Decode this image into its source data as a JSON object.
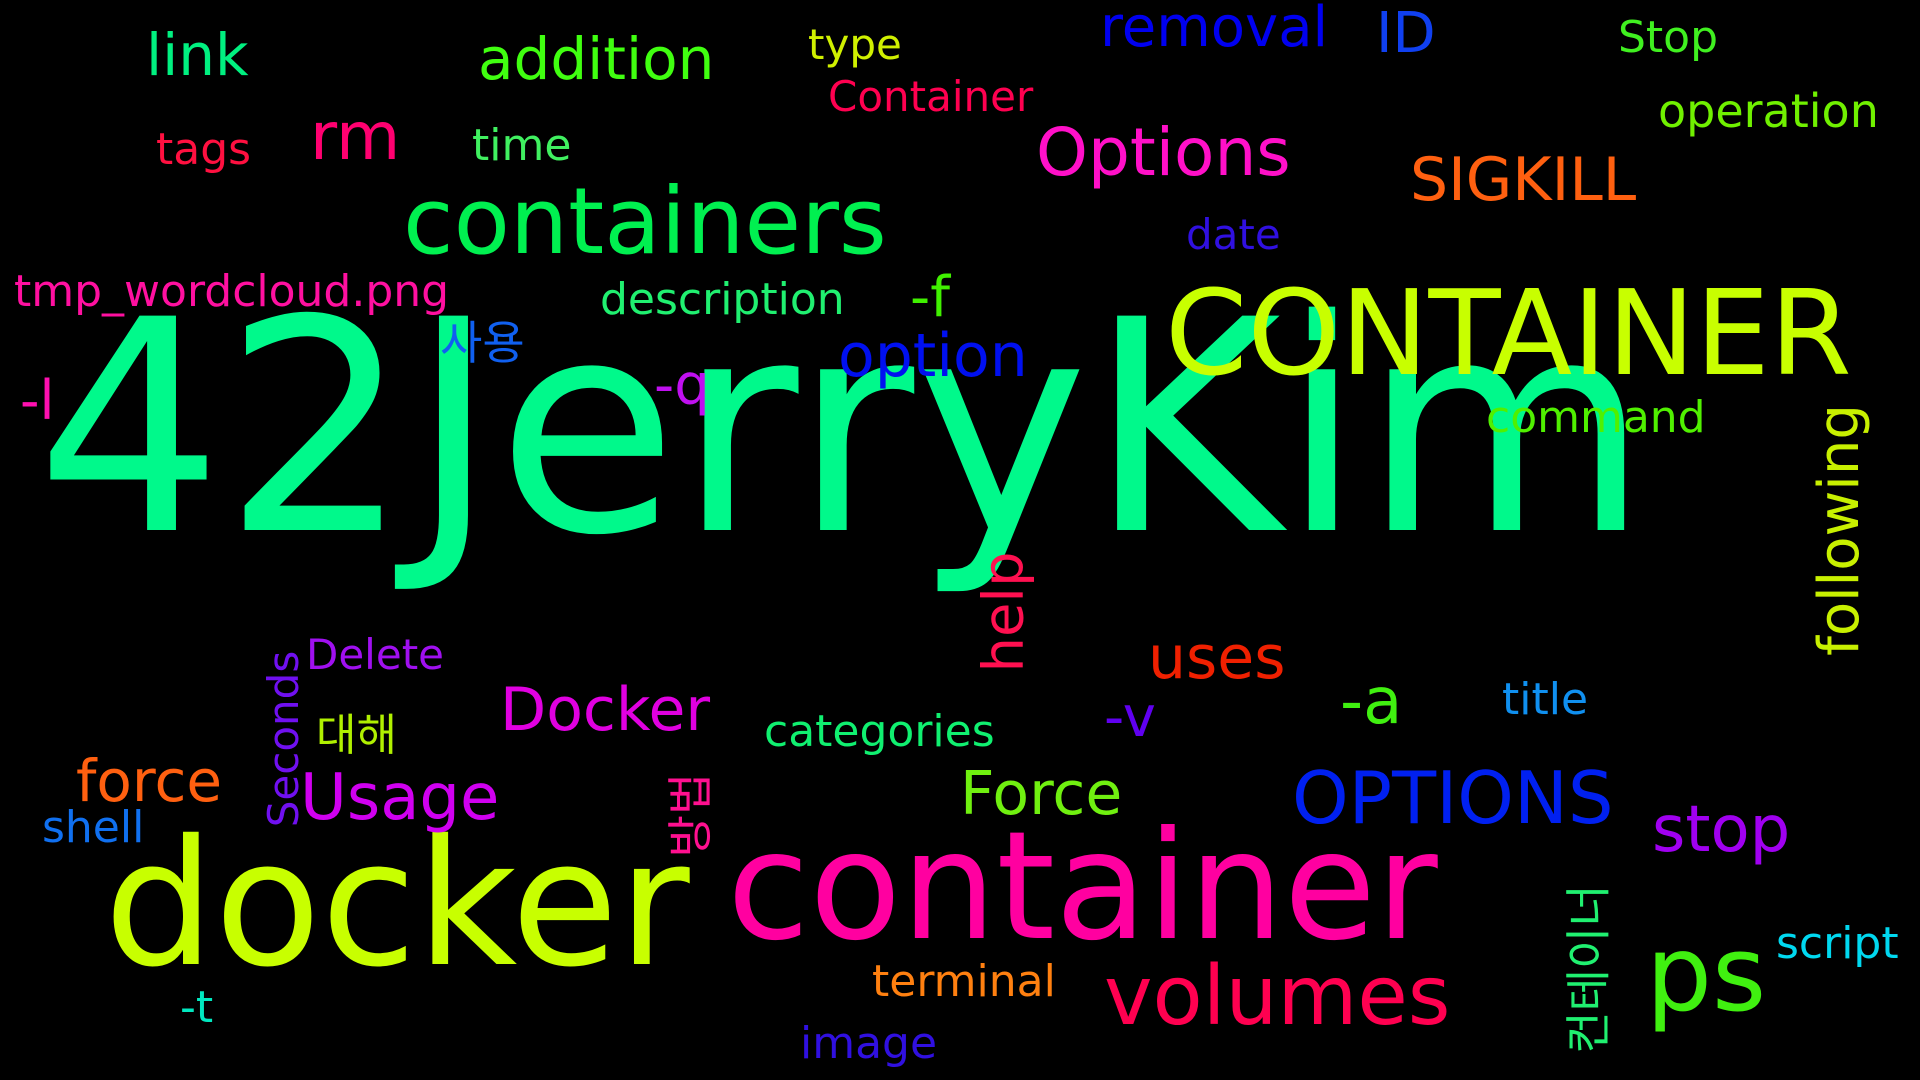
{
  "words": [
    {
      "key": "w01",
      "text": "42JerryKim",
      "color": "#00F98B"
    },
    {
      "key": "w02",
      "text": "CONTAINER",
      "color": "#C8FF00"
    },
    {
      "key": "w03",
      "text": "containers",
      "color": "#00F050"
    },
    {
      "key": "w04",
      "text": "docker",
      "color": "#C8FF00"
    },
    {
      "key": "w05",
      "text": "container",
      "color": "#FF00A0"
    },
    {
      "key": "w06",
      "text": "volumes",
      "color": "#FF0050"
    },
    {
      "key": "w07",
      "text": "ps",
      "color": "#40F010"
    },
    {
      "key": "w08",
      "text": "OPTIONS",
      "color": "#0020F0"
    },
    {
      "key": "w09",
      "text": "stop",
      "color": "#A000F0"
    },
    {
      "key": "w10",
      "text": "Options",
      "color": "#FF10C8"
    },
    {
      "key": "w11",
      "text": "option",
      "color": "#0010F0"
    },
    {
      "key": "w12",
      "text": "addition",
      "color": "#40FF10"
    },
    {
      "key": "w13",
      "text": "link",
      "color": "#00F080"
    },
    {
      "key": "w14",
      "text": "rm",
      "color": "#FF0070"
    },
    {
      "key": "w15",
      "text": "removal",
      "color": "#0000F0"
    },
    {
      "key": "w16",
      "text": "ID",
      "color": "#1040F0"
    },
    {
      "key": "w17",
      "text": "type",
      "color": "#D0F000"
    },
    {
      "key": "w18",
      "text": "Container",
      "color": "#FF0050"
    },
    {
      "key": "w19",
      "text": "Stop",
      "color": "#40F020"
    },
    {
      "key": "w20",
      "text": "operation",
      "color": "#70F000"
    },
    {
      "key": "w21",
      "text": "tags",
      "color": "#FF1040"
    },
    {
      "key": "w22",
      "text": "time",
      "color": "#40F060"
    },
    {
      "key": "w23",
      "text": "SIGKILL",
      "color": "#FF6010"
    },
    {
      "key": "w24",
      "text": "date",
      "color": "#3010E0"
    },
    {
      "key": "w25",
      "text": "tmp_wordcloud.png",
      "color": "#FF10A0"
    },
    {
      "key": "w26",
      "text": "description",
      "color": "#20F070"
    },
    {
      "key": "w27",
      "text": "-f",
      "color": "#40F000"
    },
    {
      "key": "w28",
      "text": "사용",
      "color": "#1060F0"
    },
    {
      "key": "w29",
      "text": "-l",
      "color": "#FF10B0"
    },
    {
      "key": "w30",
      "text": "-q",
      "color": "#C010F0"
    },
    {
      "key": "w31",
      "text": "command",
      "color": "#50F000"
    },
    {
      "key": "w32",
      "text": "help",
      "color": "#FF1050"
    },
    {
      "key": "w33",
      "text": "following",
      "color": "#C8F000"
    },
    {
      "key": "w34",
      "text": "uses",
      "color": "#F02000"
    },
    {
      "key": "w35",
      "text": "Delete",
      "color": "#A010F0"
    },
    {
      "key": "w36",
      "text": "Docker",
      "color": "#E000E0"
    },
    {
      "key": "w37",
      "text": "-a",
      "color": "#40F010"
    },
    {
      "key": "w38",
      "text": "title",
      "color": "#1090F0"
    },
    {
      "key": "w39",
      "text": "-v",
      "color": "#6000F0"
    },
    {
      "key": "w40",
      "text": "Seconds",
      "color": "#7010F0"
    },
    {
      "key": "w41",
      "text": "대해",
      "color": "#B0F000"
    },
    {
      "key": "w42",
      "text": "categories",
      "color": "#10F070"
    },
    {
      "key": "w43",
      "text": "force",
      "color": "#FF6010"
    },
    {
      "key": "w44",
      "text": "Usage",
      "color": "#D000F0"
    },
    {
      "key": "w45",
      "text": "Force",
      "color": "#70F010"
    },
    {
      "key": "w46",
      "text": "shell",
      "color": "#1070F0"
    },
    {
      "key": "w47",
      "text": "방법",
      "color": "#FF1090"
    },
    {
      "key": "w48",
      "text": "컨테이너",
      "color": "#20F070"
    },
    {
      "key": "w49",
      "text": "script",
      "color": "#00D8F0"
    },
    {
      "key": "w50",
      "text": "terminal",
      "color": "#FF8010"
    },
    {
      "key": "w51",
      "text": "-t",
      "color": "#00E8C0"
    },
    {
      "key": "w52",
      "text": "image",
      "color": "#3010E0"
    }
  ]
}
